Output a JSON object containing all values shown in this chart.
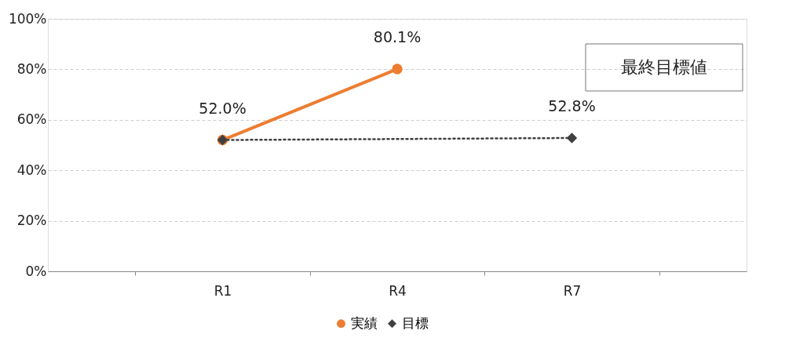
{
  "chart_data": {
    "type": "line",
    "categories": [
      "R1",
      "R4",
      "R7"
    ],
    "series": [
      {
        "name": "実績",
        "color": "#ed7d31",
        "x": [
          "R1",
          "R4"
        ],
        "values": [
          52.0,
          80.1
        ],
        "value_labels": [
          "52.0%",
          "80.1%"
        ],
        "marker": "circle",
        "line_style": "solid"
      },
      {
        "name": "目標",
        "color": "#404040",
        "x": [
          "R1",
          "R7"
        ],
        "values": [
          52.0,
          52.8
        ],
        "value_labels": [
          null,
          "52.8%"
        ],
        "marker": "diamond",
        "line_style": "dotted"
      }
    ],
    "ylim": [
      0,
      100
    ],
    "yticks": [
      {
        "value": 0,
        "label": "0%"
      },
      {
        "value": 20,
        "label": "20%"
      },
      {
        "value": 40,
        "label": "40%"
      },
      {
        "value": 60,
        "label": "60%"
      },
      {
        "value": 80,
        "label": "80%"
      },
      {
        "value": 100,
        "label": "100%"
      }
    ],
    "annotations": [
      "最終目標値"
    ],
    "grid": "y",
    "legend": "bottom"
  }
}
